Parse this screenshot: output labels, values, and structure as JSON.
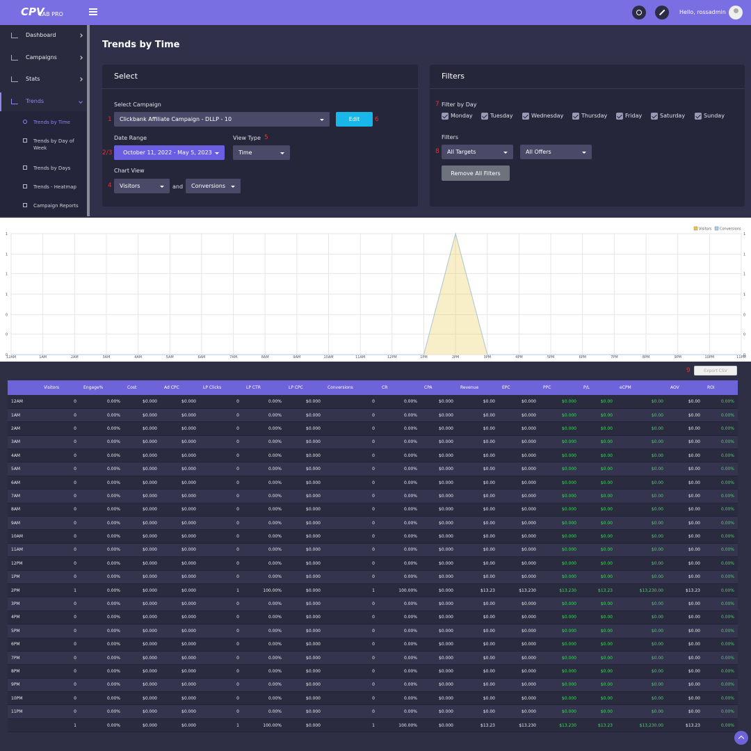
{
  "header": {
    "logo_main": "CPV",
    "logo_sub": "LAB PRO",
    "greeting": "Hello, rossadmin"
  },
  "sidebar": {
    "items": [
      "Dashboard",
      "Campaigns",
      "Stats",
      "Trends"
    ],
    "subitems": [
      "Trends by Time",
      "Trends by Day of Week",
      "Trends by Days",
      "Trends - Heatmap",
      "Campaign Reports"
    ]
  },
  "page": {
    "title": "Trends by Time"
  },
  "select": {
    "title": "Select",
    "campaign_label": "Select Campaign",
    "campaign": "Clickbank Affiliate Campaign  -  DLLP  -  10",
    "edit": "Edit",
    "date_label": "Date Range",
    "date": "October 11, 2022 - May 5, 2023",
    "view_label": "View Type",
    "view": "Time",
    "chart_label": "Chart View",
    "chart_a": "Visitors",
    "and": "and",
    "chart_b": "Conversions"
  },
  "filters": {
    "title": "Filters",
    "day_label": "Filter by Day",
    "days": [
      "Monday",
      "Tuesday",
      "Wednesday",
      "Thursday",
      "Friday",
      "Saturday",
      "Sunday"
    ],
    "filters_label": "Filters",
    "targets": "All Targets",
    "offers": "All Offers",
    "remove": "Remove All Filters"
  },
  "annotations": [
    "1",
    "2/3",
    "4",
    "5",
    "6",
    "7",
    "8",
    "9"
  ],
  "export": "Export CSV",
  "chart_data": {
    "type": "line",
    "categories": [
      "12AM",
      "1AM",
      "2AM",
      "3AM",
      "4AM",
      "5AM",
      "6AM",
      "7AM",
      "8AM",
      "9AM",
      "10AM",
      "11AM",
      "12PM",
      "1PM",
      "2PM",
      "3PM",
      "4PM",
      "5PM",
      "6PM",
      "7PM",
      "8PM",
      "9PM",
      "10PM",
      "11PM"
    ],
    "series": [
      {
        "name": "Visitors",
        "color": "#e8c64a",
        "values": [
          0,
          0,
          0,
          0,
          0,
          0,
          0,
          0,
          0,
          0,
          0,
          0,
          0,
          0,
          1,
          0,
          0,
          0,
          0,
          0,
          0,
          0,
          0,
          0
        ]
      },
      {
        "name": "Conversions",
        "color": "#a9cdea",
        "values": [
          0,
          0,
          0,
          0,
          0,
          0,
          0,
          0,
          0,
          0,
          0,
          0,
          0,
          0,
          1,
          0,
          0,
          0,
          0,
          0,
          0,
          0,
          0,
          0
        ]
      }
    ],
    "ylim": [
      0,
      1
    ],
    "yticks": [
      0,
      {
        "value": 0.17,
        "label": "0"
      },
      {
        "value": 0.33,
        "label": "0"
      },
      {
        "value": 0.5,
        "label": "1"
      },
      {
        "value": 0.67,
        "label": "1"
      },
      {
        "value": 0.83,
        "label": "1"
      },
      1
    ],
    "grid": true,
    "legend": "top-right"
  },
  "table": {
    "columns": [
      null,
      "Visitors",
      "Engage%",
      "Cost",
      "Ad CPC",
      "LP Clicks",
      "LP CTR",
      "LP CPC",
      "Conversions",
      "CR",
      "CPA",
      "Revenue",
      "EPC",
      "PPC",
      "P/L",
      "eCPM",
      "AOV",
      "ROI"
    ],
    "rows": [
      [
        "12AM",
        "0",
        "0.00%",
        "$0.000",
        "$0.000",
        "0",
        "0.00%",
        "$0.000",
        "0",
        "0.00%",
        "$0.000",
        "$0.00",
        "$0.000",
        "$0.000",
        "$0.00",
        "$0.00",
        "$0.00",
        "0.00%"
      ],
      [
        "1AM",
        "0",
        "0.00%",
        "$0.000",
        "$0.000",
        "0",
        "0.00%",
        "$0.000",
        "0",
        "0.00%",
        "$0.000",
        "$0.00",
        "$0.000",
        "$0.000",
        "$0.00",
        "$0.00",
        "$0.00",
        "0.00%"
      ],
      [
        "2AM",
        "0",
        "0.00%",
        "$0.000",
        "$0.000",
        "0",
        "0.00%",
        "$0.000",
        "0",
        "0.00%",
        "$0.000",
        "$0.00",
        "$0.000",
        "$0.000",
        "$0.00",
        "$0.00",
        "$0.00",
        "0.00%"
      ],
      [
        "3AM",
        "0",
        "0.00%",
        "$0.000",
        "$0.000",
        "0",
        "0.00%",
        "$0.000",
        "0",
        "0.00%",
        "$0.000",
        "$0.00",
        "$0.000",
        "$0.000",
        "$0.00",
        "$0.00",
        "$0.00",
        "0.00%"
      ],
      [
        "4AM",
        "0",
        "0.00%",
        "$0.000",
        "$0.000",
        "0",
        "0.00%",
        "$0.000",
        "0",
        "0.00%",
        "$0.000",
        "$0.00",
        "$0.000",
        "$0.000",
        "$0.00",
        "$0.00",
        "$0.00",
        "0.00%"
      ],
      [
        "5AM",
        "0",
        "0.00%",
        "$0.000",
        "$0.000",
        "0",
        "0.00%",
        "$0.000",
        "0",
        "0.00%",
        "$0.000",
        "$0.00",
        "$0.000",
        "$0.000",
        "$0.00",
        "$0.00",
        "$0.00",
        "0.00%"
      ],
      [
        "6AM",
        "0",
        "0.00%",
        "$0.000",
        "$0.000",
        "0",
        "0.00%",
        "$0.000",
        "0",
        "0.00%",
        "$0.000",
        "$0.00",
        "$0.000",
        "$0.000",
        "$0.00",
        "$0.00",
        "$0.00",
        "0.00%"
      ],
      [
        "7AM",
        "0",
        "0.00%",
        "$0.000",
        "$0.000",
        "0",
        "0.00%",
        "$0.000",
        "0",
        "0.00%",
        "$0.000",
        "$0.00",
        "$0.000",
        "$0.000",
        "$0.00",
        "$0.00",
        "$0.00",
        "0.00%"
      ],
      [
        "8AM",
        "0",
        "0.00%",
        "$0.000",
        "$0.000",
        "0",
        "0.00%",
        "$0.000",
        "0",
        "0.00%",
        "$0.000",
        "$0.00",
        "$0.000",
        "$0.000",
        "$0.00",
        "$0.00",
        "$0.00",
        "0.00%"
      ],
      [
        "9AM",
        "0",
        "0.00%",
        "$0.000",
        "$0.000",
        "0",
        "0.00%",
        "$0.000",
        "0",
        "0.00%",
        "$0.000",
        "$0.00",
        "$0.000",
        "$0.000",
        "$0.00",
        "$0.00",
        "$0.00",
        "0.00%"
      ],
      [
        "10AM",
        "0",
        "0.00%",
        "$0.000",
        "$0.000",
        "0",
        "0.00%",
        "$0.000",
        "0",
        "0.00%",
        "$0.000",
        "$0.00",
        "$0.000",
        "$0.000",
        "$0.00",
        "$0.00",
        "$0.00",
        "0.00%"
      ],
      [
        "11AM",
        "0",
        "0.00%",
        "$0.000",
        "$0.000",
        "0",
        "0.00%",
        "$0.000",
        "0",
        "0.00%",
        "$0.000",
        "$0.00",
        "$0.000",
        "$0.000",
        "$0.00",
        "$0.00",
        "$0.00",
        "0.00%"
      ],
      [
        "12PM",
        "0",
        "0.00%",
        "$0.000",
        "$0.000",
        "0",
        "0.00%",
        "$0.000",
        "0",
        "0.00%",
        "$0.000",
        "$0.00",
        "$0.000",
        "$0.000",
        "$0.00",
        "$0.00",
        "$0.00",
        "0.00%"
      ],
      [
        "1PM",
        "0",
        "0.00%",
        "$0.000",
        "$0.000",
        "0",
        "0.00%",
        "$0.000",
        "0",
        "0.00%",
        "$0.000",
        "$0.00",
        "$0.000",
        "$0.000",
        "$0.00",
        "$0.00",
        "$0.00",
        "0.00%"
      ],
      [
        "2PM",
        "1",
        "0.00%",
        "$0.000",
        "$0.000",
        "1",
        "100.00%",
        "$0.000",
        "1",
        "100.00%",
        "$0.000",
        "$13.23",
        "$13.230",
        "$13.230",
        "$13.23",
        "$13,230.00",
        "$13.23",
        "0.00%"
      ],
      [
        "3PM",
        "0",
        "0.00%",
        "$0.000",
        "$0.000",
        "0",
        "0.00%",
        "$0.000",
        "0",
        "0.00%",
        "$0.000",
        "$0.00",
        "$0.000",
        "$0.000",
        "$0.00",
        "$0.00",
        "$0.00",
        "0.00%"
      ],
      [
        "4PM",
        "0",
        "0.00%",
        "$0.000",
        "$0.000",
        "0",
        "0.00%",
        "$0.000",
        "0",
        "0.00%",
        "$0.000",
        "$0.00",
        "$0.000",
        "$0.000",
        "$0.00",
        "$0.00",
        "$0.00",
        "0.00%"
      ],
      [
        "5PM",
        "0",
        "0.00%",
        "$0.000",
        "$0.000",
        "0",
        "0.00%",
        "$0.000",
        "0",
        "0.00%",
        "$0.000",
        "$0.00",
        "$0.000",
        "$0.000",
        "$0.00",
        "$0.00",
        "$0.00",
        "0.00%"
      ],
      [
        "6PM",
        "0",
        "0.00%",
        "$0.000",
        "$0.000",
        "0",
        "0.00%",
        "$0.000",
        "0",
        "0.00%",
        "$0.000",
        "$0.00",
        "$0.000",
        "$0.000",
        "$0.00",
        "$0.00",
        "$0.00",
        "0.00%"
      ],
      [
        "7PM",
        "0",
        "0.00%",
        "$0.000",
        "$0.000",
        "0",
        "0.00%",
        "$0.000",
        "0",
        "0.00%",
        "$0.000",
        "$0.00",
        "$0.000",
        "$0.000",
        "$0.00",
        "$0.00",
        "$0.00",
        "0.00%"
      ],
      [
        "8PM",
        "0",
        "0.00%",
        "$0.000",
        "$0.000",
        "0",
        "0.00%",
        "$0.000",
        "0",
        "0.00%",
        "$0.000",
        "$0.00",
        "$0.000",
        "$0.000",
        "$0.00",
        "$0.00",
        "$0.00",
        "0.00%"
      ],
      [
        "9PM",
        "0",
        "0.00%",
        "$0.000",
        "$0.000",
        "0",
        "0.00%",
        "$0.000",
        "0",
        "0.00%",
        "$0.000",
        "$0.00",
        "$0.000",
        "$0.000",
        "$0.00",
        "$0.00",
        "$0.00",
        "0.00%"
      ],
      [
        "10PM",
        "0",
        "0.00%",
        "$0.000",
        "$0.000",
        "0",
        "0.00%",
        "$0.000",
        "0",
        "0.00%",
        "$0.000",
        "$0.00",
        "$0.000",
        "$0.000",
        "$0.00",
        "$0.00",
        "$0.00",
        "0.00%"
      ],
      [
        "11PM",
        "0",
        "0.00%",
        "$0.000",
        "$0.000",
        "0",
        "0.00%",
        "$0.000",
        "0",
        "0.00%",
        "$0.000",
        "$0.00",
        "$0.000",
        "$0.000",
        "$0.00",
        "$0.00",
        "$0.00",
        "0.00%"
      ],
      [
        null,
        "1",
        "0.00%",
        "$0.000",
        "$0.000",
        "1",
        "100.00%",
        "$0.000",
        "1",
        "100.00%",
        "$0.000",
        "$13.23",
        "$13.230",
        "$13.230",
        "$13.23",
        "$13,230.00",
        "$13.23",
        "0.00%"
      ]
    ]
  }
}
